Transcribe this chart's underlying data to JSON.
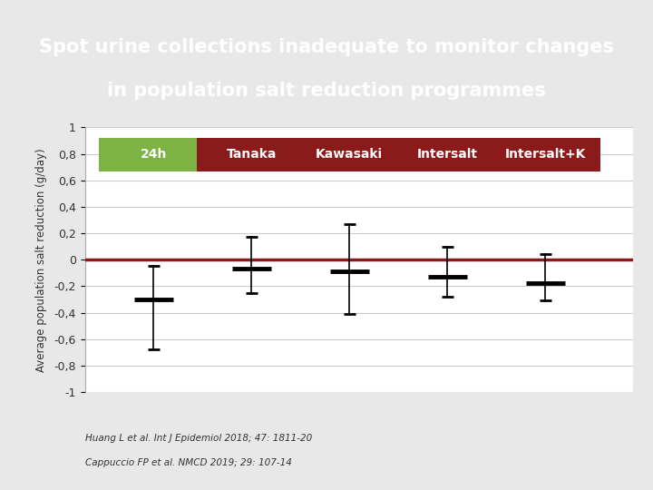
{
  "title_line1": "Spot urine collections inadequate to monitor changes",
  "title_line2": "in population salt reduction programmes",
  "title_bg_color": "#8B1A1A",
  "title_text_color": "#FFFFFF",
  "bg_color": "#E8E8E8",
  "plot_bg_color": "#FFFFFF",
  "ylabel": "Average population salt reduction (g/day)",
  "ylim": [
    -1,
    1
  ],
  "yticks": [
    -1,
    -0.8,
    -0.6,
    -0.4,
    -0.2,
    0,
    0.2,
    0.4,
    0.6,
    0.8,
    1
  ],
  "ytick_labels": [
    "-1",
    "-0,8",
    "-0,6",
    "-0,4",
    "-0,2",
    "0",
    "0,2",
    "0,4",
    "0,6",
    "0,8",
    "1"
  ],
  "zero_line_color": "#8B1A1A",
  "grid_color": "#CCCCCC",
  "methods": [
    "24h",
    "Tanaka",
    "Kawasaki",
    "Intersalt",
    "Intersalt+K"
  ],
  "method_colors": [
    "#7CB342",
    "#8B1A1A",
    "#8B1A1A",
    "#8B1A1A",
    "#8B1A1A"
  ],
  "x_positions": [
    1,
    2,
    3,
    4,
    5
  ],
  "means": [
    -0.3,
    -0.065,
    -0.09,
    -0.13,
    -0.175
  ],
  "ci_lower": [
    -0.68,
    -0.25,
    -0.41,
    -0.28,
    -0.31
  ],
  "ci_upper": [
    -0.05,
    0.17,
    0.27,
    0.1,
    0.04
  ],
  "marker_color": "#000000",
  "marker_linewidth": 3.5,
  "cap_linewidth": 2.0,
  "errorbar_linewidth": 1.2,
  "footnote1": "Huang L et al. Int J Epidemiol 2018; 47: 1811-20",
  "footnote2": "Cappuccio FP et al. NMCD 2019; 29: 107-14",
  "footnote_color": "#333333",
  "footnote_fontsize": 7.5,
  "title_fontsize": 15,
  "legend_fontsize": 10,
  "ylabel_fontsize": 8.5,
  "ytick_fontsize": 9
}
